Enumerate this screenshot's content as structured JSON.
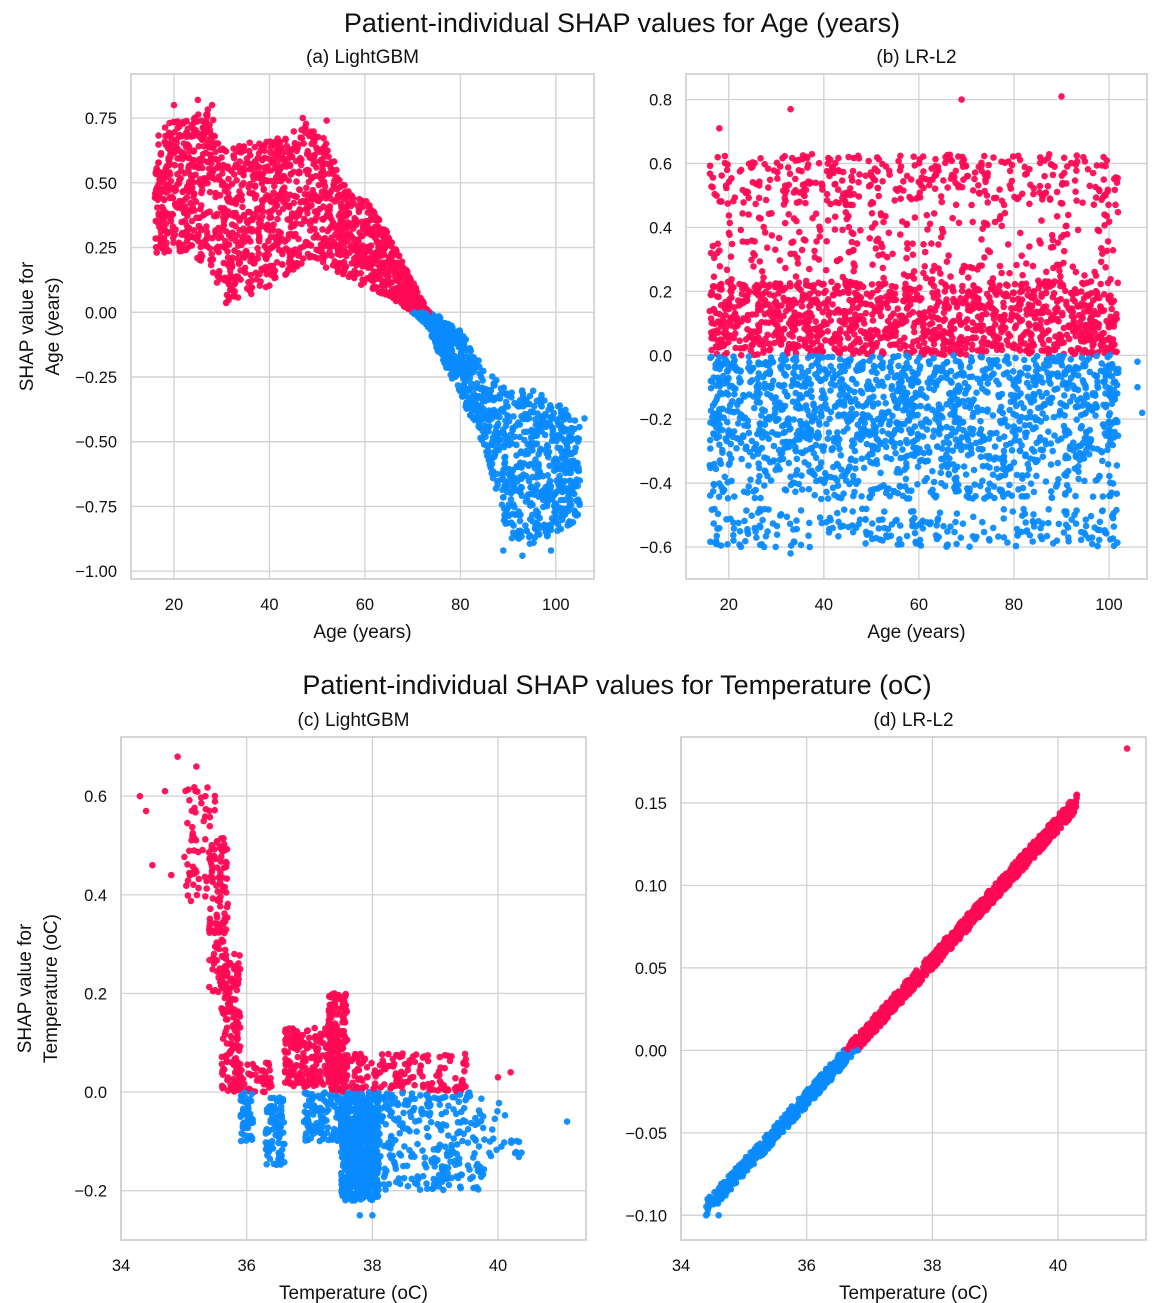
{
  "colors": {
    "positive": "#ff0a54",
    "negative": "#0a8bff"
  },
  "rows": [
    {
      "title": "Patient-individual SHAP values for Age (years)"
    },
    {
      "title": "Patient-individual SHAP values for Temperature (oC)"
    }
  ],
  "chart_data": [
    {
      "type": "scatter",
      "title": "(a) LightGBM",
      "xlabel": "Age (years)",
      "ylabel": [
        "SHAP value for",
        "Age (years)"
      ],
      "xlim": [
        11,
        108
      ],
      "ylim": [
        -1.03,
        0.92
      ],
      "xticks": [
        20,
        40,
        60,
        80,
        100
      ],
      "xtick_labels": [
        "20",
        "40",
        "60",
        "80",
        "100"
      ],
      "yticks": [
        -1.0,
        -0.75,
        -0.5,
        -0.25,
        0.0,
        0.25,
        0.5,
        0.75
      ],
      "ytick_labels": [
        "−1.00",
        "−0.75",
        "−0.50",
        "−0.25",
        "0.00",
        "0.25",
        "0.50",
        "0.75"
      ],
      "grid": true,
      "color_rule": "red when SHAP value > 0, blue otherwise",
      "envelope": {
        "x": [
          16,
          20,
          24,
          27,
          31,
          35,
          40,
          44,
          48,
          52,
          56,
          60,
          65,
          70,
          73,
          76,
          80,
          85,
          90,
          95,
          100,
          105
        ],
        "ylow": [
          0.22,
          0.24,
          0.22,
          0.18,
          0.03,
          0.06,
          0.1,
          0.15,
          0.2,
          0.17,
          0.13,
          0.1,
          0.06,
          0.0,
          -0.05,
          -0.18,
          -0.32,
          -0.52,
          -0.88,
          -0.9,
          -0.85,
          -0.8
        ],
        "yhigh": [
          0.7,
          0.74,
          0.76,
          0.8,
          0.62,
          0.66,
          0.66,
          0.7,
          0.74,
          0.66,
          0.48,
          0.44,
          0.3,
          0.12,
          0.01,
          -0.02,
          -0.07,
          -0.22,
          -0.3,
          -0.3,
          -0.34,
          -0.42
        ]
      },
      "outliers": [
        [
          20,
          0.8
        ],
        [
          25,
          0.82
        ],
        [
          28,
          0.8
        ],
        [
          47,
          0.75
        ],
        [
          52,
          0.74
        ],
        [
          89,
          -0.92
        ],
        [
          93,
          -0.94
        ],
        [
          99,
          -0.92
        ],
        [
          104,
          -0.78
        ],
        [
          105,
          -0.65
        ],
        [
          106,
          -0.41
        ]
      ]
    },
    {
      "type": "scatter",
      "title": "(b) LR-L2",
      "xlabel": "Age (years)",
      "ylabel": [],
      "xlim": [
        11,
        108
      ],
      "ylim": [
        -0.7,
        0.88
      ],
      "xticks": [
        20,
        40,
        60,
        80,
        100
      ],
      "xtick_labels": [
        "20",
        "40",
        "60",
        "80",
        "100"
      ],
      "yticks": [
        -0.6,
        -0.4,
        -0.2,
        0.0,
        0.2,
        0.4,
        0.6,
        0.8
      ],
      "ytick_labels": [
        "−0.6",
        "−0.4",
        "−0.2",
        "0.0",
        "0.2",
        "0.4",
        "0.6",
        "0.8"
      ],
      "grid": true,
      "color_rule": "red when SHAP value > 0, blue otherwise",
      "bands": [
        {
          "y": [
            0.0,
            0.23
          ],
          "weight": 10
        },
        {
          "y": [
            -0.3,
            0.0
          ],
          "weight": 10
        },
        {
          "y": [
            0.47,
            0.63
          ],
          "weight": 3
        },
        {
          "y": [
            0.23,
            0.45
          ],
          "weight": 2
        },
        {
          "y": [
            -0.45,
            -0.3
          ],
          "weight": 3
        },
        {
          "y": [
            -0.6,
            -0.48
          ],
          "weight": 2
        }
      ],
      "x_range": [
        16,
        102
      ],
      "outliers": [
        [
          18,
          0.71
        ],
        [
          33,
          0.77
        ],
        [
          69,
          0.8
        ],
        [
          90,
          0.81
        ],
        [
          21,
          -0.58
        ],
        [
          33,
          -0.62
        ],
        [
          60,
          -0.59
        ],
        [
          107,
          -0.18
        ],
        [
          106,
          -0.1
        ],
        [
          106,
          -0.02
        ]
      ]
    },
    {
      "type": "scatter",
      "title": "(c) LightGBM",
      "xlabel": "Temperature (oC)",
      "ylabel": [
        "SHAP value for",
        "Temperature (oC)"
      ],
      "xlim": [
        34,
        41.4
      ],
      "ylim": [
        -0.3,
        0.72
      ],
      "xticks": [
        34,
        36,
        38,
        40
      ],
      "xtick_labels": [
        "34",
        "36",
        "38",
        "40"
      ],
      "yticks": [
        -0.2,
        0.0,
        0.2,
        0.4,
        0.6
      ],
      "ytick_labels": [
        "−0.2",
        "0.0",
        "0.2",
        "0.4",
        "0.6"
      ],
      "grid": true,
      "color_rule": "red when SHAP value > 0, blue otherwise",
      "segments": [
        {
          "x": [
            35.0,
            35.5
          ],
          "y": [
            0.38,
            0.62
          ],
          "n": 60
        },
        {
          "x": [
            35.4,
            35.7
          ],
          "y": [
            0.2,
            0.52
          ],
          "n": 120
        },
        {
          "x": [
            35.6,
            35.9
          ],
          "y": [
            0.0,
            0.28
          ],
          "n": 160
        },
        {
          "x": [
            35.8,
            36.4
          ],
          "y": [
            0.0,
            0.06
          ],
          "n": 60
        },
        {
          "x": [
            35.9,
            36.1
          ],
          "y": [
            -0.1,
            0.0
          ],
          "n": 50
        },
        {
          "x": [
            36.3,
            36.6
          ],
          "y": [
            -0.15,
            -0.01
          ],
          "n": 80
        },
        {
          "x": [
            36.6,
            37.5
          ],
          "y": [
            0.01,
            0.13
          ],
          "n": 220
        },
        {
          "x": [
            37.3,
            37.6
          ],
          "y": [
            0.0,
            0.2
          ],
          "n": 150
        },
        {
          "x": [
            36.9,
            37.6
          ],
          "y": [
            -0.1,
            0.0
          ],
          "n": 120
        },
        {
          "x": [
            37.5,
            38.1
          ],
          "y": [
            -0.22,
            0.0
          ],
          "n": 700
        },
        {
          "x": [
            37.5,
            39.5
          ],
          "y": [
            0.0,
            0.08
          ],
          "n": 160
        },
        {
          "x": [
            38.0,
            39.8
          ],
          "y": [
            -0.2,
            0.0
          ],
          "n": 280
        },
        {
          "x": [
            39.8,
            40.4
          ],
          "y": [
            -0.14,
            -0.02
          ],
          "n": 20
        }
      ],
      "outliers": [
        [
          34.3,
          0.6
        ],
        [
          34.4,
          0.57
        ],
        [
          34.7,
          0.61
        ],
        [
          34.9,
          0.68
        ],
        [
          35.2,
          0.66
        ],
        [
          34.5,
          0.46
        ],
        [
          34.8,
          0.44
        ],
        [
          41.1,
          -0.06
        ],
        [
          40.0,
          0.03
        ],
        [
          40.2,
          0.04
        ],
        [
          37.8,
          -0.25
        ],
        [
          38.0,
          -0.25
        ]
      ]
    },
    {
      "type": "scatter",
      "title": "(d) LR-L2",
      "xlabel": "Temperature (oC)",
      "ylabel": [],
      "xlim": [
        34,
        41.4
      ],
      "ylim": [
        -0.115,
        0.19
      ],
      "xticks": [
        34,
        36,
        38,
        40
      ],
      "xtick_labels": [
        "34",
        "36",
        "38",
        "40"
      ],
      "yticks": [
        -0.1,
        -0.05,
        0.0,
        0.05,
        0.1,
        0.15
      ],
      "ytick_labels": [
        "−0.10",
        "−0.05",
        "0.00",
        "0.05",
        "0.10",
        "0.15"
      ],
      "grid": true,
      "color_rule": "red when SHAP value > 0, blue otherwise",
      "line": {
        "x_start": 34.4,
        "x_end": 40.3,
        "slope": 0.0417,
        "x_zero": 36.7,
        "spread": 0.005
      },
      "outliers": [
        [
          34.4,
          -0.1
        ],
        [
          34.5,
          -0.09
        ],
        [
          34.6,
          -0.1
        ],
        [
          41.1,
          0.183
        ],
        [
          40.3,
          0.155
        ]
      ]
    }
  ]
}
